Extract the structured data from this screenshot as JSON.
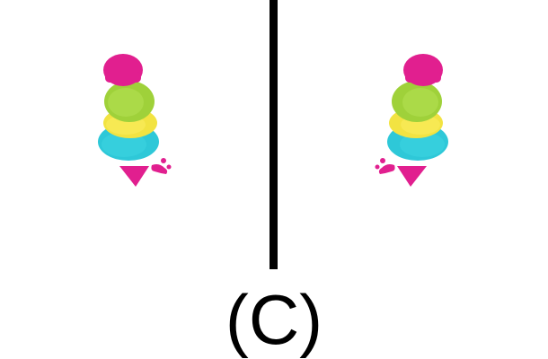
{
  "option_label": "(C)",
  "object_icon": "stacked-colored-figure-icon",
  "colors": {
    "magenta": "#e11f8f",
    "green": "#9fd13a",
    "yellow": "#f2e342",
    "cyan": "#2ec8d8",
    "divider": "#000000"
  }
}
